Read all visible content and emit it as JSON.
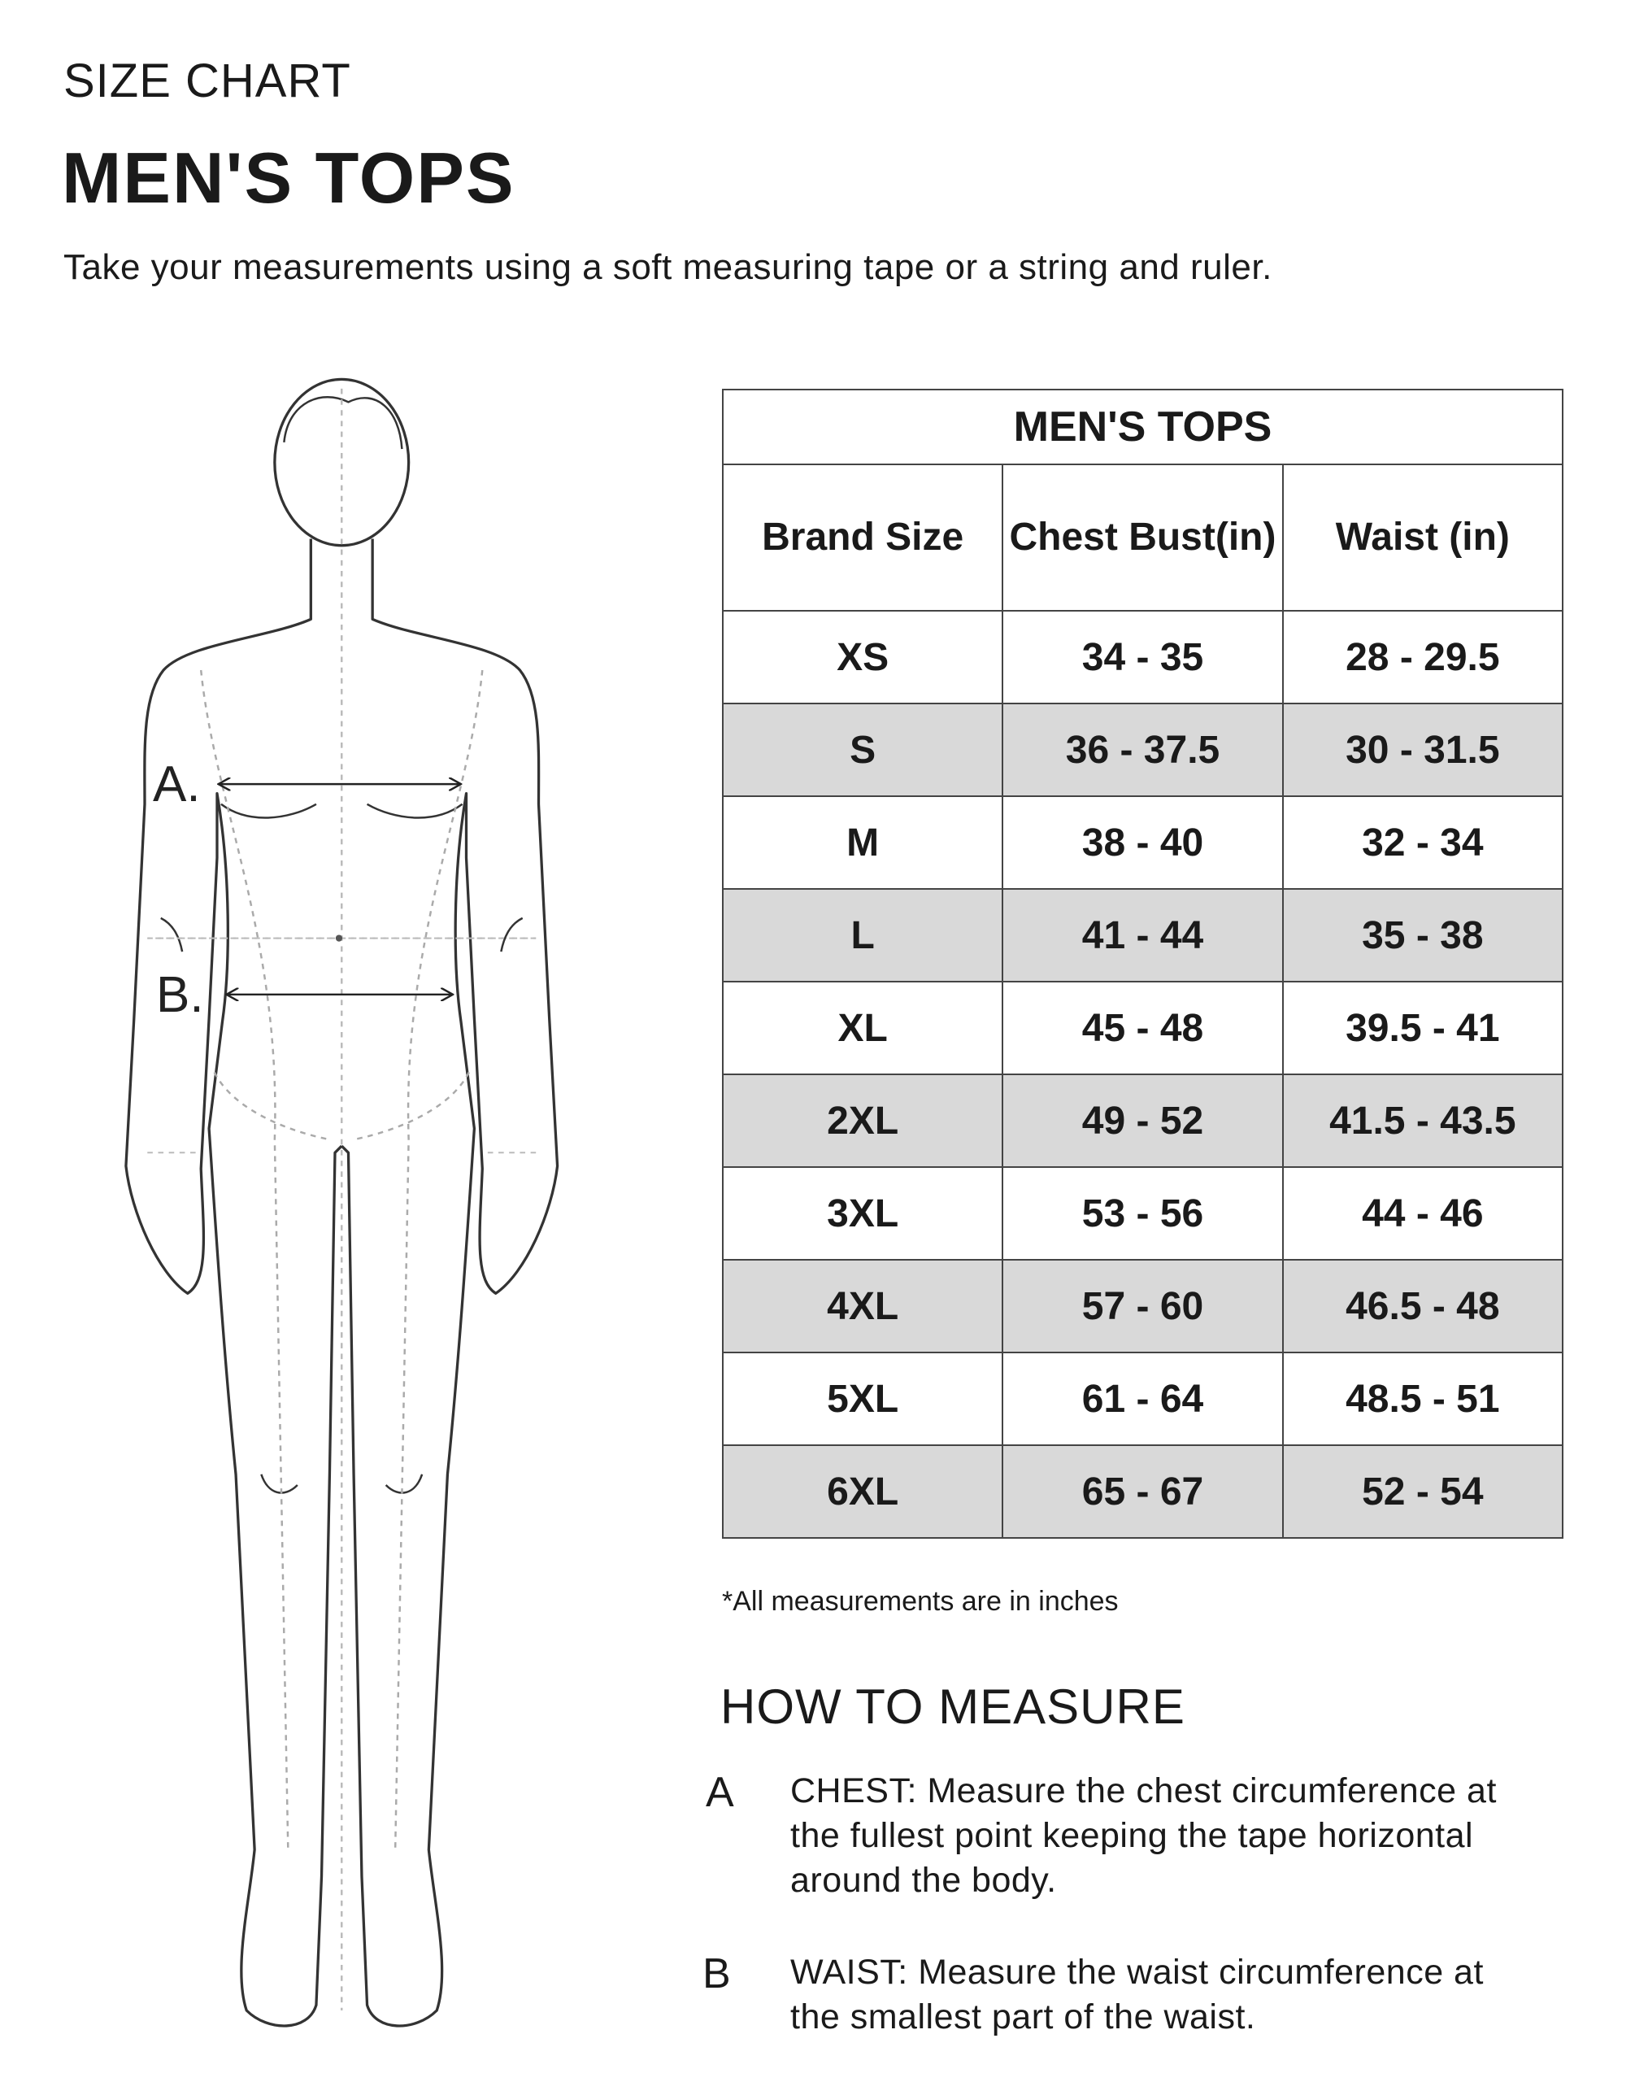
{
  "header": {
    "section": "SIZE CHART",
    "title": "MEN'S TOPS",
    "subtitle": "Take your measurements using a soft measuring tape or a string and ruler."
  },
  "figure": {
    "labels": [
      "A.",
      "B."
    ]
  },
  "table": {
    "title": "MEN'S TOPS",
    "columns": [
      "Brand Size",
      "Chest Bust(in)",
      "Waist (in)"
    ],
    "rows": [
      [
        "XS",
        "34 - 35",
        "28 - 29.5"
      ],
      [
        "S",
        "36 - 37.5",
        "30 - 31.5"
      ],
      [
        "M",
        "38 - 40",
        "32 - 34"
      ],
      [
        "L",
        "41 - 44",
        "35 - 38"
      ],
      [
        "XL",
        "45 - 48",
        "39.5 - 41"
      ],
      [
        "2XL",
        "49 - 52",
        "41.5 - 43.5"
      ],
      [
        "3XL",
        "53 - 56",
        "44 - 46"
      ],
      [
        "4XL",
        "57 - 60",
        "46.5 - 48"
      ],
      [
        "5XL",
        "61 - 64",
        "48.5 - 51"
      ],
      [
        "6XL",
        "65 - 67",
        "52 - 54"
      ]
    ]
  },
  "footnote": "*All measurements are in inches",
  "how_to": {
    "title": "HOW TO MEASURE",
    "steps": [
      {
        "letter": "A",
        "lines": [
          "CHEST: Measure the chest circumference at",
          "the fullest point keeping the tape horizontal",
          "around the body."
        ]
      },
      {
        "letter": "B",
        "lines": [
          "WAIST: Measure the waist circumference at",
          "the smallest part of the waist."
        ]
      }
    ]
  }
}
